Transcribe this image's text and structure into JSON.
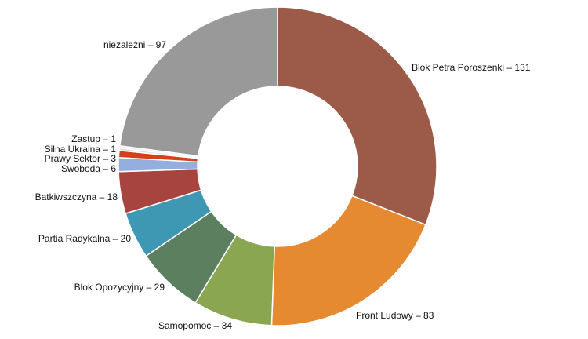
{
  "chart_data": {
    "type": "pie",
    "donut": true,
    "title": "",
    "legend": "none",
    "slices": [
      {
        "name": "Blok Petra Poroszenki",
        "value": 131,
        "label": "Blok Petra Poroszenki – 131",
        "color": "#9c5a48"
      },
      {
        "name": "Front Ludowy",
        "value": 83,
        "label": "Front Ludowy – 83",
        "color": "#e58a30"
      },
      {
        "name": "Samopomoc",
        "value": 34,
        "label": "Samopomoc – 34",
        "color": "#8aa650"
      },
      {
        "name": "Blok Opozycyjny",
        "value": 29,
        "label": "Blok Opozycyjny – 29",
        "color": "#5c805f"
      },
      {
        "name": "Partia Radykalna",
        "value": 20,
        "label": "Partia Radykalna – 20",
        "color": "#3e98b3"
      },
      {
        "name": "Batkiwszczyna",
        "value": 18,
        "label": "Batkiwszczyna – 18",
        "color": "#a8443f"
      },
      {
        "name": "Swoboda",
        "value": 6,
        "label": "Swoboda – 6",
        "color": "#94aede"
      },
      {
        "name": "Prawy Sektor",
        "value": 3,
        "label": "Prawy Sektor – 3",
        "color": "#d6401b"
      },
      {
        "name": "Silna Ukraina",
        "value": 1,
        "label": "Silna Ukraina – 1",
        "color": "#d9d9d9"
      },
      {
        "name": "Zastup",
        "value": 1,
        "label": "Zastup – 1",
        "color": "#ececec"
      },
      {
        "name": "niezależni",
        "value": 97,
        "label": "niezależni – 97",
        "color": "#999999"
      }
    ]
  }
}
